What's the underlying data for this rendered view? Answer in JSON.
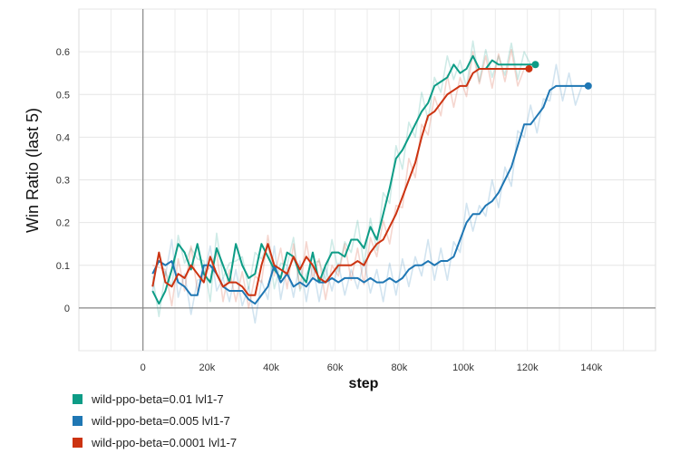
{
  "chart_data": {
    "type": "line",
    "xlabel": "step",
    "ylabel": "Win Ratio (last 5)",
    "xlim": [
      -20000,
      160000
    ],
    "ylim": [
      -0.1,
      0.7
    ],
    "x_ticks": [
      0,
      20000,
      40000,
      60000,
      80000,
      100000,
      120000,
      140000
    ],
    "x_tick_labels": [
      "0",
      "20k",
      "40k",
      "60k",
      "80k",
      "100k",
      "120k",
      "140k"
    ],
    "y_ticks": [
      0,
      0.1,
      0.2,
      0.3,
      0.4,
      0.5,
      0.6
    ],
    "y_tick_labels": [
      "0",
      "0.1",
      "0.2",
      "0.3",
      "0.4",
      "0.5",
      "0.6"
    ],
    "grid": true,
    "legend_position": "bottom-left",
    "series": [
      {
        "name": "wild-ppo-beta=0.01 lvl1-7",
        "color": "#0d9c86",
        "x": [
          3000,
          5000,
          7000,
          9000,
          11000,
          13000,
          15000,
          17000,
          19000,
          21000,
          23000,
          25000,
          27000,
          29000,
          31000,
          33000,
          35000,
          37000,
          39000,
          41000,
          43000,
          45000,
          47000,
          49000,
          51000,
          53000,
          55000,
          57000,
          59000,
          61000,
          63000,
          65000,
          67000,
          69000,
          71000,
          73000,
          75000,
          77000,
          79000,
          81000,
          83000,
          85000,
          87000,
          89000,
          91000,
          93000,
          95000,
          97000,
          99000,
          101000,
          103000,
          105000,
          107000,
          109000,
          111000,
          113000,
          115000,
          117000,
          119000,
          121000,
          122500
        ],
        "y": [
          0.04,
          0.01,
          0.04,
          0.09,
          0.15,
          0.13,
          0.09,
          0.15,
          0.08,
          0.06,
          0.14,
          0.1,
          0.06,
          0.15,
          0.1,
          0.07,
          0.08,
          0.15,
          0.12,
          0.09,
          0.07,
          0.13,
          0.12,
          0.08,
          0.06,
          0.13,
          0.06,
          0.1,
          0.13,
          0.13,
          0.12,
          0.16,
          0.16,
          0.14,
          0.19,
          0.16,
          0.22,
          0.28,
          0.35,
          0.37,
          0.4,
          0.43,
          0.46,
          0.48,
          0.52,
          0.53,
          0.54,
          0.57,
          0.55,
          0.56,
          0.59,
          0.56,
          0.56,
          0.58,
          0.57,
          0.57,
          0.57,
          0.57,
          0.57,
          0.57,
          0.57
        ]
      },
      {
        "name": "wild-ppo-beta=0.005 lvl1-7",
        "color": "#1f77b4",
        "x": [
          3000,
          5000,
          7000,
          9000,
          11000,
          13000,
          15000,
          17000,
          19000,
          21000,
          23000,
          25000,
          27000,
          29000,
          31000,
          33000,
          35000,
          37000,
          39000,
          41000,
          43000,
          45000,
          47000,
          49000,
          51000,
          53000,
          55000,
          57000,
          59000,
          61000,
          63000,
          65000,
          67000,
          69000,
          71000,
          73000,
          75000,
          77000,
          79000,
          81000,
          83000,
          85000,
          87000,
          89000,
          91000,
          93000,
          95000,
          97000,
          99000,
          101000,
          103000,
          105000,
          107000,
          109000,
          111000,
          113000,
          115000,
          117000,
          119000,
          121000,
          123000,
          125000,
          127000,
          129000,
          131000,
          133000,
          135000,
          137000,
          139000
        ],
        "y": [
          0.08,
          0.11,
          0.1,
          0.11,
          0.06,
          0.05,
          0.03,
          0.03,
          0.1,
          0.1,
          0.08,
          0.05,
          0.04,
          0.04,
          0.04,
          0.02,
          0.01,
          0.03,
          0.05,
          0.1,
          0.06,
          0.08,
          0.05,
          0.06,
          0.05,
          0.07,
          0.06,
          0.06,
          0.07,
          0.06,
          0.07,
          0.07,
          0.07,
          0.06,
          0.07,
          0.06,
          0.06,
          0.07,
          0.06,
          0.07,
          0.09,
          0.1,
          0.1,
          0.11,
          0.1,
          0.11,
          0.11,
          0.12,
          0.16,
          0.2,
          0.22,
          0.22,
          0.24,
          0.25,
          0.27,
          0.3,
          0.33,
          0.38,
          0.43,
          0.43,
          0.45,
          0.47,
          0.51,
          0.52,
          0.52,
          0.52,
          0.52,
          0.52,
          0.52
        ]
      },
      {
        "name": "wild-ppo-beta=0.0001 lvl1-7",
        "color": "#cc3311",
        "x": [
          3000,
          5000,
          7000,
          9000,
          11000,
          13000,
          15000,
          17000,
          19000,
          21000,
          23000,
          25000,
          27000,
          29000,
          31000,
          33000,
          35000,
          37000,
          39000,
          41000,
          43000,
          45000,
          47000,
          49000,
          51000,
          53000,
          55000,
          57000,
          59000,
          61000,
          63000,
          65000,
          67000,
          69000,
          71000,
          73000,
          75000,
          77000,
          79000,
          81000,
          83000,
          85000,
          87000,
          89000,
          91000,
          93000,
          95000,
          97000,
          99000,
          101000,
          103000,
          105000,
          107000,
          109000,
          111000,
          113000,
          115000,
          117000,
          119000,
          120500
        ],
        "y": [
          0.05,
          0.13,
          0.06,
          0.05,
          0.08,
          0.07,
          0.1,
          0.08,
          0.06,
          0.12,
          0.08,
          0.05,
          0.06,
          0.06,
          0.05,
          0.03,
          0.03,
          0.1,
          0.15,
          0.1,
          0.09,
          0.08,
          0.12,
          0.09,
          0.12,
          0.1,
          0.07,
          0.06,
          0.08,
          0.1,
          0.1,
          0.1,
          0.11,
          0.1,
          0.13,
          0.15,
          0.16,
          0.19,
          0.22,
          0.26,
          0.3,
          0.34,
          0.4,
          0.45,
          0.46,
          0.48,
          0.5,
          0.51,
          0.52,
          0.52,
          0.55,
          0.56,
          0.56,
          0.56,
          0.56,
          0.56,
          0.56,
          0.56,
          0.56,
          0.56
        ]
      }
    ]
  }
}
